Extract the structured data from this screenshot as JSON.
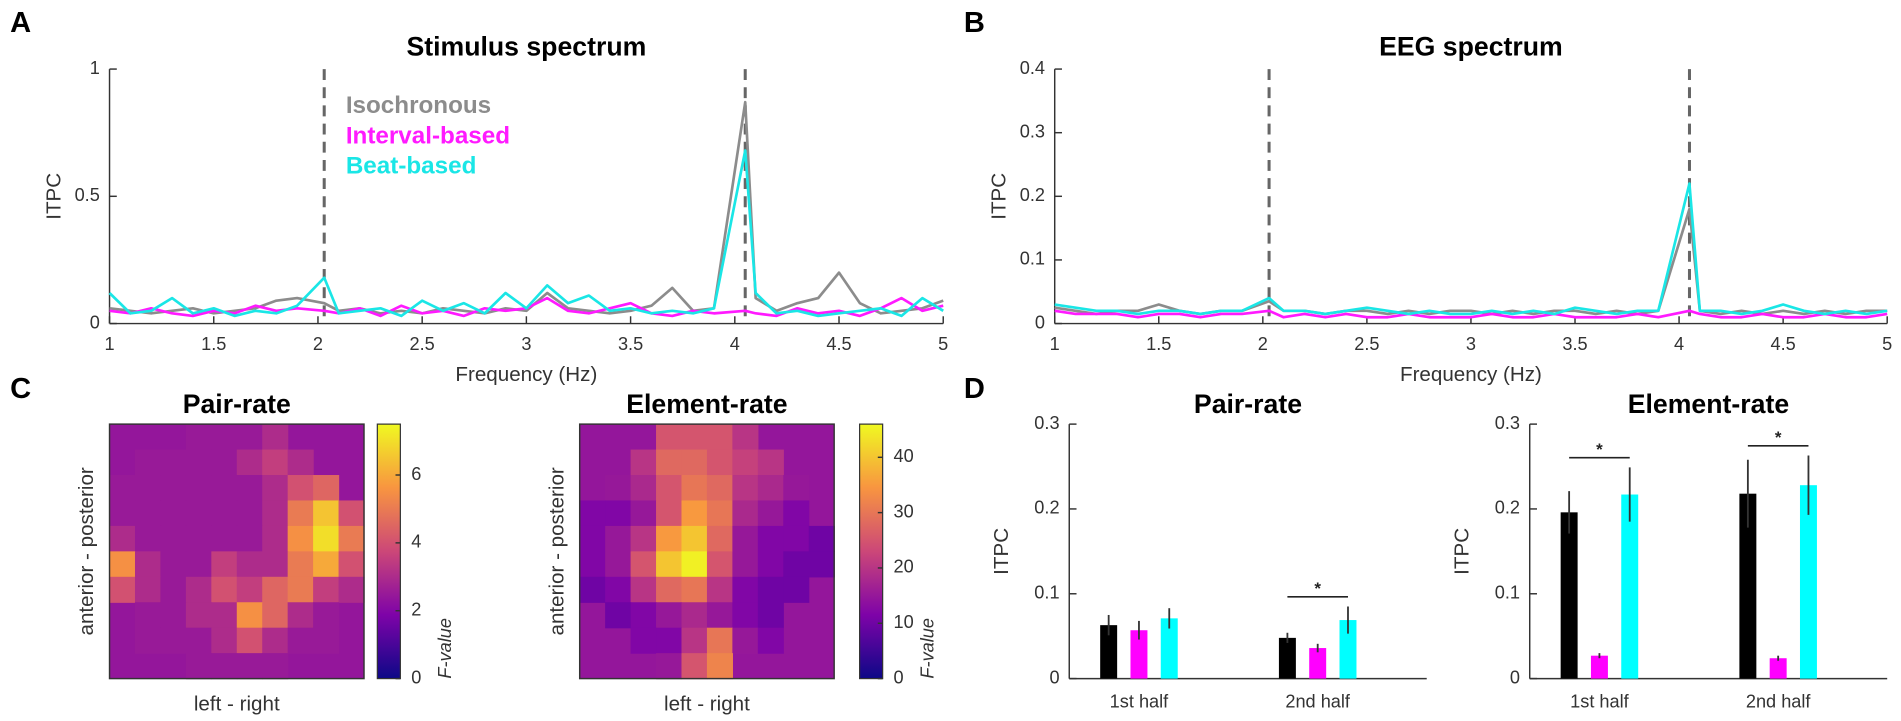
{
  "chart_data": [
    {
      "type": "line",
      "panel_label": "A",
      "title": "Stimulus spectrum",
      "xlabel": "Frequency (Hz)",
      "ylabel": "ITPC",
      "x": [
        1,
        1.1,
        1.2,
        1.3,
        1.4,
        1.5,
        1.6,
        1.7,
        1.8,
        1.9,
        2.03,
        2.1,
        2.2,
        2.3,
        2.4,
        2.5,
        2.6,
        2.7,
        2.8,
        2.9,
        3,
        3.1,
        3.2,
        3.3,
        3.4,
        3.5,
        3.6,
        3.7,
        3.8,
        3.9,
        4.05,
        4.1,
        4.2,
        4.3,
        4.4,
        4.5,
        4.6,
        4.7,
        4.8,
        4.9,
        5
      ],
      "series": [
        {
          "name": "Isochronous",
          "color": "#8c8c8c",
          "values": [
            0.06,
            0.05,
            0.04,
            0.05,
            0.06,
            0.04,
            0.05,
            0.06,
            0.09,
            0.1,
            0.08,
            0.05,
            0.06,
            0.04,
            0.05,
            0.04,
            0.06,
            0.05,
            0.04,
            0.06,
            0.05,
            0.12,
            0.06,
            0.05,
            0.04,
            0.05,
            0.07,
            0.14,
            0.05,
            0.06,
            0.87,
            0.1,
            0.05,
            0.08,
            0.1,
            0.2,
            0.08,
            0.04,
            0.05,
            0.06,
            0.09
          ]
        },
        {
          "name": "Interval-based",
          "color": "#ff1aff",
          "values": [
            0.05,
            0.04,
            0.06,
            0.04,
            0.03,
            0.05,
            0.04,
            0.07,
            0.05,
            0.06,
            0.05,
            0.04,
            0.06,
            0.03,
            0.07,
            0.04,
            0.05,
            0.03,
            0.06,
            0.05,
            0.06,
            0.1,
            0.05,
            0.04,
            0.06,
            0.08,
            0.04,
            0.03,
            0.05,
            0.04,
            0.05,
            0.04,
            0.03,
            0.06,
            0.04,
            0.05,
            0.03,
            0.06,
            0.1,
            0.05,
            0.07
          ]
        },
        {
          "name": "Beat-based",
          "color": "#1ae6e6",
          "values": [
            0.12,
            0.04,
            0.05,
            0.1,
            0.04,
            0.06,
            0.03,
            0.05,
            0.04,
            0.07,
            0.18,
            0.04,
            0.05,
            0.06,
            0.03,
            0.09,
            0.05,
            0.08,
            0.04,
            0.12,
            0.06,
            0.15,
            0.08,
            0.11,
            0.05,
            0.06,
            0.04,
            0.05,
            0.04,
            0.06,
            0.68,
            0.12,
            0.04,
            0.05,
            0.03,
            0.04,
            0.05,
            0.06,
            0.03,
            0.1,
            0.05
          ]
        }
      ],
      "vlines": [
        2.03,
        4.05
      ],
      "legend": true,
      "xlim": [
        1,
        5
      ],
      "xticks": [
        1,
        1.5,
        2,
        2.5,
        3,
        3.5,
        4,
        4.5,
        5
      ],
      "ylim": [
        0,
        1
      ],
      "yticks": [
        0,
        0.5,
        1
      ]
    },
    {
      "type": "line",
      "panel_label": "B",
      "title": "EEG spectrum",
      "xlabel": "Frequency (Hz)",
      "ylabel": "ITPC",
      "x": [
        1,
        1.1,
        1.2,
        1.3,
        1.4,
        1.5,
        1.6,
        1.7,
        1.8,
        1.9,
        2.03,
        2.1,
        2.2,
        2.3,
        2.4,
        2.5,
        2.6,
        2.7,
        2.8,
        2.9,
        3,
        3.1,
        3.2,
        3.3,
        3.4,
        3.5,
        3.6,
        3.7,
        3.8,
        3.9,
        4.05,
        4.1,
        4.2,
        4.3,
        4.4,
        4.5,
        4.6,
        4.7,
        4.8,
        4.9,
        5
      ],
      "series": [
        {
          "color": "#8c8c8c",
          "values": [
            0.025,
            0.02,
            0.015,
            0.02,
            0.02,
            0.03,
            0.02,
            0.015,
            0.02,
            0.02,
            0.035,
            0.02,
            0.02,
            0.015,
            0.02,
            0.02,
            0.015,
            0.02,
            0.015,
            0.02,
            0.02,
            0.015,
            0.02,
            0.015,
            0.02,
            0.02,
            0.015,
            0.02,
            0.015,
            0.02,
            0.18,
            0.02,
            0.015,
            0.02,
            0.015,
            0.02,
            0.015,
            0.02,
            0.015,
            0.02,
            0.02
          ]
        },
        {
          "color": "#ff1aff",
          "values": [
            0.02,
            0.015,
            0.015,
            0.015,
            0.01,
            0.015,
            0.015,
            0.01,
            0.015,
            0.015,
            0.02,
            0.01,
            0.015,
            0.01,
            0.015,
            0.01,
            0.01,
            0.015,
            0.01,
            0.01,
            0.01,
            0.015,
            0.01,
            0.01,
            0.015,
            0.01,
            0.01,
            0.01,
            0.015,
            0.01,
            0.02,
            0.015,
            0.01,
            0.01,
            0.015,
            0.01,
            0.01,
            0.015,
            0.01,
            0.01,
            0.015
          ]
        },
        {
          "color": "#1ae6e6",
          "values": [
            0.03,
            0.025,
            0.02,
            0.02,
            0.015,
            0.02,
            0.02,
            0.015,
            0.02,
            0.02,
            0.04,
            0.02,
            0.02,
            0.015,
            0.02,
            0.025,
            0.02,
            0.015,
            0.02,
            0.015,
            0.015,
            0.02,
            0.015,
            0.02,
            0.015,
            0.025,
            0.02,
            0.015,
            0.02,
            0.02,
            0.22,
            0.02,
            0.02,
            0.015,
            0.02,
            0.03,
            0.02,
            0.015,
            0.02,
            0.015,
            0.02
          ]
        }
      ],
      "vlines": [
        2.03,
        4.05
      ],
      "xlim": [
        1,
        5
      ],
      "xticks": [
        1,
        1.5,
        2,
        2.5,
        3,
        3.5,
        4,
        4.5,
        5
      ],
      "ylim": [
        0,
        0.4
      ],
      "yticks": [
        0,
        0.1,
        0.2,
        0.3,
        0.4
      ]
    },
    {
      "type": "heatmap",
      "panel_label": "C",
      "title": "Pair-rate",
      "xlabel": "left - right",
      "ylabel": "anterior - posterior",
      "colorbar_label": "F-value",
      "clim": [
        0,
        7.5
      ],
      "cticks": [
        0,
        2,
        4,
        6
      ],
      "values": [
        [
          null,
          null,
          null,
          2.5,
          2.5,
          2.5,
          3,
          null,
          null,
          null
        ],
        [
          null,
          2.5,
          2.5,
          2.5,
          2.5,
          3,
          3.5,
          3,
          null,
          null
        ],
        [
          2.5,
          2.5,
          2.5,
          2.5,
          2.5,
          2.5,
          3,
          4,
          4.5,
          null
        ],
        [
          2.5,
          2.5,
          2.5,
          2.5,
          2.5,
          2.5,
          3,
          5,
          6.5,
          4
        ],
        [
          3,
          2.5,
          2.5,
          2.5,
          2.5,
          2.5,
          3,
          5.5,
          7,
          5
        ],
        [
          5.5,
          3,
          2.5,
          2.5,
          3.5,
          3,
          3,
          5,
          6,
          4
        ],
        [
          4,
          3,
          2.5,
          3,
          4,
          3.5,
          4.5,
          5,
          3.5,
          3
        ],
        [
          null,
          2.5,
          2.5,
          3,
          3,
          5.5,
          4.5,
          3,
          2.5,
          null
        ],
        [
          null,
          2.5,
          2.5,
          2.5,
          3,
          4,
          3,
          2.5,
          2.5,
          null
        ],
        [
          null,
          null,
          null,
          2.5,
          2.5,
          2.5,
          2.5,
          null,
          null,
          null
        ]
      ]
    },
    {
      "type": "heatmap",
      "title": "Element-rate",
      "xlabel": "left - right",
      "ylabel": "anterior - posterior",
      "colorbar_label": "F-value",
      "clim": [
        0,
        46
      ],
      "cticks": [
        0,
        10,
        20,
        30,
        40
      ],
      "values": [
        [
          null,
          null,
          null,
          25,
          25,
          25,
          20,
          null,
          null,
          null
        ],
        [
          null,
          null,
          20,
          28,
          28,
          25,
          22,
          20,
          null,
          null
        ],
        [
          null,
          15,
          18,
          25,
          30,
          28,
          20,
          18,
          15,
          null
        ],
        [
          12,
          12,
          15,
          25,
          35,
          30,
          18,
          15,
          12,
          null
        ],
        [
          12,
          15,
          20,
          35,
          40,
          28,
          15,
          12,
          12,
          10
        ],
        [
          12,
          15,
          25,
          40,
          45,
          25,
          15,
          12,
          10,
          10
        ],
        [
          10,
          12,
          20,
          28,
          30,
          20,
          12,
          10,
          10,
          null
        ],
        [
          null,
          10,
          12,
          15,
          18,
          15,
          12,
          10,
          null,
          null
        ],
        [
          null,
          null,
          12,
          12,
          20,
          30,
          15,
          12,
          null,
          null
        ],
        [
          null,
          null,
          null,
          15,
          25,
          32,
          null,
          null,
          null,
          null
        ]
      ]
    },
    {
      "type": "bar",
      "panel_label": "D",
      "title": "Pair-rate",
      "ylabel": "ITPC",
      "categories": [
        "1st half",
        "2nd half"
      ],
      "series": [
        {
          "color": "#000000",
          "values": [
            0.063,
            0.048
          ],
          "errors": [
            0.012,
            0.006
          ]
        },
        {
          "color": "#ff00ff",
          "values": [
            0.057,
            0.036
          ],
          "errors": [
            0.011,
            0.005
          ]
        },
        {
          "color": "#00ffff",
          "values": [
            0.071,
            0.069
          ],
          "errors": [
            0.012,
            0.016
          ]
        }
      ],
      "significance": [
        {
          "category": 1,
          "label": "*"
        }
      ],
      "ylim": [
        0,
        0.3
      ],
      "yticks": [
        0,
        0.1,
        0.2,
        0.3
      ]
    },
    {
      "type": "bar",
      "title": "Element-rate",
      "ylabel": "ITPC",
      "categories": [
        "1st half",
        "2nd half"
      ],
      "series": [
        {
          "color": "#000000",
          "values": [
            0.196,
            0.218
          ],
          "errors": [
            0.025,
            0.04
          ]
        },
        {
          "color": "#ff00ff",
          "values": [
            0.027,
            0.024
          ],
          "errors": [
            0.003,
            0.003
          ]
        },
        {
          "color": "#00ffff",
          "values": [
            0.217,
            0.228
          ],
          "errors": [
            0.032,
            0.035
          ]
        }
      ],
      "significance": [
        {
          "category": 0,
          "label": "*"
        },
        {
          "category": 1,
          "label": "*"
        }
      ],
      "ylim": [
        0,
        0.3
      ],
      "yticks": [
        0,
        0.1,
        0.2,
        0.3
      ]
    }
  ]
}
